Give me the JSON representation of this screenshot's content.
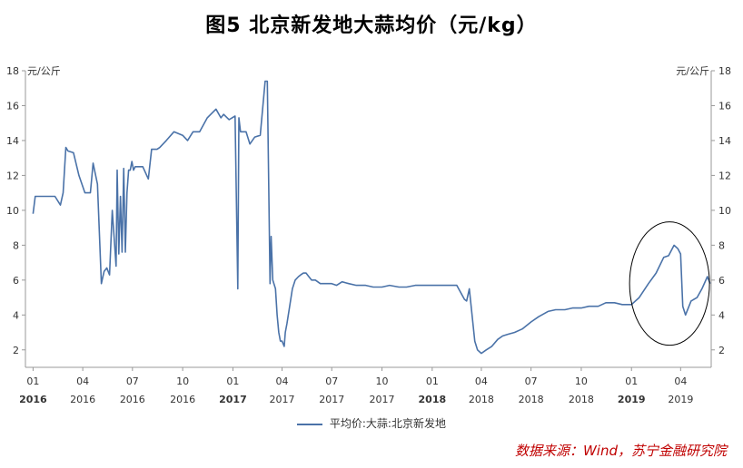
{
  "chart_data": {
    "type": "line",
    "title": "图5 北京新发地大蒜均价（元/kg）",
    "ylabel_left": "元/公斤",
    "ylabel_right": "元/公斤",
    "ylim": [
      1,
      18
    ],
    "yticks": [
      2,
      4,
      6,
      8,
      10,
      12,
      14,
      16,
      18
    ],
    "grid": false,
    "legend_position": "bottom-center",
    "x_ticks": [
      {
        "month": "01",
        "year": "2016"
      },
      {
        "month": "04",
        "year": "2016"
      },
      {
        "month": "07",
        "year": "2016"
      },
      {
        "month": "10",
        "year": "2016"
      },
      {
        "month": "01",
        "year": "2017"
      },
      {
        "month": "04",
        "year": "2017"
      },
      {
        "month": "07",
        "year": "2017"
      },
      {
        "month": "10",
        "year": "2017"
      },
      {
        "month": "01",
        "year": "2018"
      },
      {
        "month": "04",
        "year": "2018"
      },
      {
        "month": "07",
        "year": "2018"
      },
      {
        "month": "10",
        "year": "2018"
      },
      {
        "month": "01",
        "year": "2019"
      },
      {
        "month": "04",
        "year": "2019"
      }
    ],
    "series": [
      {
        "name": "平均价:大蒜:北京新发地",
        "color": "#4a72a8",
        "x": [
          "2016-01-01",
          "2016-01-05",
          "2016-01-20",
          "2016-02-10",
          "2016-02-20",
          "2016-02-25",
          "2016-03-01",
          "2016-03-05",
          "2016-03-15",
          "2016-03-25",
          "2016-04-05",
          "2016-04-15",
          "2016-04-20",
          "2016-04-28",
          "2016-05-05",
          "2016-05-10",
          "2016-05-15",
          "2016-05-20",
          "2016-05-25",
          "2016-06-01",
          "2016-06-03",
          "2016-06-06",
          "2016-06-09",
          "2016-06-12",
          "2016-06-15",
          "2016-06-18",
          "2016-06-21",
          "2016-06-24",
          "2016-06-27",
          "2016-06-30",
          "2016-07-03",
          "2016-07-06",
          "2016-07-10",
          "2016-07-20",
          "2016-07-30",
          "2016-08-05",
          "2016-08-10",
          "2016-08-15",
          "2016-08-20",
          "2016-09-01",
          "2016-09-15",
          "2016-10-01",
          "2016-10-10",
          "2016-10-20",
          "2016-11-01",
          "2016-11-15",
          "2016-12-01",
          "2016-12-10",
          "2016-12-15",
          "2016-12-25",
          "2017-01-05",
          "2017-01-10",
          "2017-01-12",
          "2017-01-15",
          "2017-01-20",
          "2017-01-25",
          "2017-02-01",
          "2017-02-10",
          "2017-02-20",
          "2017-03-01",
          "2017-03-05",
          "2017-03-10",
          "2017-03-12",
          "2017-03-15",
          "2017-03-20",
          "2017-03-23",
          "2017-03-26",
          "2017-03-29",
          "2017-04-01",
          "2017-04-05",
          "2017-04-07",
          "2017-04-10",
          "2017-04-15",
          "2017-04-20",
          "2017-04-25",
          "2017-05-01",
          "2017-05-05",
          "2017-05-10",
          "2017-05-15",
          "2017-05-20",
          "2017-05-25",
          "2017-06-01",
          "2017-06-10",
          "2017-06-20",
          "2017-07-01",
          "2017-07-10",
          "2017-07-20",
          "2017-08-01",
          "2017-08-15",
          "2017-09-01",
          "2017-09-15",
          "2017-10-01",
          "2017-10-15",
          "2017-11-01",
          "2017-11-15",
          "2017-12-01",
          "2017-12-15",
          "2018-01-01",
          "2018-01-15",
          "2018-02-01",
          "2018-02-15",
          "2018-03-01",
          "2018-03-05",
          "2018-03-10",
          "2018-03-15",
          "2018-03-20",
          "2018-03-25",
          "2018-04-01",
          "2018-04-10",
          "2018-04-20",
          "2018-05-01",
          "2018-05-10",
          "2018-05-20",
          "2018-06-01",
          "2018-06-15",
          "2018-07-01",
          "2018-07-15",
          "2018-08-01",
          "2018-08-15",
          "2018-09-01",
          "2018-09-15",
          "2018-10-01",
          "2018-10-15",
          "2018-11-01",
          "2018-11-15",
          "2018-12-01",
          "2018-12-15",
          "2019-01-01",
          "2019-01-15",
          "2019-02-01",
          "2019-02-15",
          "2019-03-01",
          "2019-03-10",
          "2019-03-20",
          "2019-03-27",
          "2019-04-01",
          "2019-04-05",
          "2019-04-10",
          "2019-04-20",
          "2019-05-01",
          "2019-05-10",
          "2019-05-20",
          "2019-05-25"
        ],
        "values": [
          9.8,
          10.8,
          10.8,
          10.8,
          10.3,
          11.0,
          13.6,
          13.4,
          13.3,
          12.0,
          11.0,
          11.0,
          12.7,
          11.5,
          5.8,
          6.5,
          6.7,
          6.3,
          10.0,
          6.8,
          12.3,
          7.5,
          10.8,
          7.6,
          12.4,
          7.6,
          11.0,
          12.3,
          12.3,
          12.8,
          12.3,
          12.5,
          12.5,
          12.5,
          11.8,
          13.5,
          13.5,
          13.5,
          13.6,
          14.0,
          14.5,
          14.3,
          14.0,
          14.5,
          14.5,
          15.3,
          15.8,
          15.3,
          15.5,
          15.2,
          15.4,
          5.5,
          15.3,
          14.5,
          14.5,
          14.5,
          13.8,
          14.2,
          14.3,
          17.4,
          17.4,
          5.8,
          8.5,
          6.0,
          5.5,
          4.0,
          3.0,
          2.5,
          2.5,
          2.2,
          3.0,
          3.5,
          4.5,
          5.5,
          6.0,
          6.2,
          6.3,
          6.4,
          6.4,
          6.2,
          6.0,
          6.0,
          5.8,
          5.8,
          5.8,
          5.7,
          5.9,
          5.8,
          5.7,
          5.7,
          5.6,
          5.6,
          5.7,
          5.6,
          5.6,
          5.7,
          5.7,
          5.7,
          5.7,
          5.7,
          5.7,
          4.9,
          4.8,
          5.5,
          4.0,
          2.5,
          2.0,
          1.8,
          2.0,
          2.2,
          2.6,
          2.8,
          2.9,
          3.0,
          3.2,
          3.6,
          3.9,
          4.2,
          4.3,
          4.3,
          4.4,
          4.4,
          4.5,
          4.5,
          4.7,
          4.7,
          4.6,
          4.6,
          5.0,
          5.8,
          6.4,
          7.3,
          7.4,
          8.0,
          7.8,
          7.5,
          4.5,
          4.0,
          4.8,
          5.0,
          5.5,
          6.2,
          5.8
        ]
      }
    ]
  },
  "source_note": "数据来源：Wind，苏宁金融研究院",
  "highlight": {
    "shape": "ellipse",
    "color": "#000000"
  }
}
